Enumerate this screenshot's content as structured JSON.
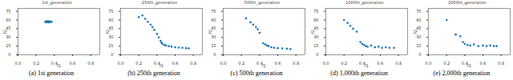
{
  "chart_data": [
    {
      "type": "scatter",
      "title": "1st_generation",
      "caption": "(a) 1st generation",
      "x_label": "f1",
      "y_label": "f2",
      "color": "#1f77b4",
      "marker": "circle",
      "x": [
        0.3,
        0.31,
        0.32,
        0.33,
        0.34,
        0.35,
        0.36,
        0.37,
        0.31,
        0.33,
        0.35,
        0.32
      ],
      "values": [
        57,
        58,
        56.5,
        57.5,
        56,
        57,
        56.5,
        57,
        56,
        58,
        57.5,
        57
      ],
      "xlim": [
        0,
        0.9
      ],
      "ylim": [
        0,
        80
      ],
      "xticks": [
        {
          "value": 0,
          "label": "0.0"
        },
        0.2,
        0.4,
        0.6,
        0.8
      ],
      "yticks": [
        0,
        15,
        30,
        45,
        60,
        75
      ]
    },
    {
      "type": "scatter",
      "title": "250th_generation",
      "caption": "(b) 250th generation",
      "x_label": "f1",
      "y_label": "f2",
      "color": "#1f77b4",
      "marker": "circle",
      "x": [
        0.2,
        0.24,
        0.27,
        0.3,
        0.33,
        0.35,
        0.37,
        0.4,
        0.42,
        0.44,
        0.45,
        0.46,
        0.48,
        0.5,
        0.53,
        0.56,
        0.6,
        0.64,
        0.68,
        0.72,
        0.75
      ],
      "values": [
        65,
        68,
        62,
        57,
        52,
        48,
        43,
        36,
        30,
        24,
        21,
        19,
        17,
        16,
        15,
        14,
        13,
        12.5,
        12,
        11.5,
        11
      ],
      "xlim": [
        0,
        0.9
      ],
      "ylim": [
        0,
        80
      ],
      "xticks": [
        {
          "value": 0,
          "label": "0.0"
        },
        0.2,
        0.4,
        0.6,
        0.8
      ],
      "yticks": [
        0,
        15,
        30,
        45,
        60,
        75
      ]
    },
    {
      "type": "scatter",
      "title": "500th_generation",
      "caption": "(c) 500th generation",
      "x_label": "f1",
      "y_label": "f2",
      "color": "#1f77b4",
      "marker": "circle",
      "x": [
        0.25,
        0.3,
        0.33,
        0.36,
        0.38,
        0.4,
        0.44,
        0.46,
        0.48,
        0.5,
        0.53,
        0.56,
        0.6,
        0.65,
        0.7,
        0.74
      ],
      "values": [
        63,
        56,
        52,
        48,
        44,
        38,
        20,
        18,
        16,
        15,
        13,
        12,
        11.5,
        11,
        10.5,
        10
      ],
      "xlim": [
        0,
        0.9
      ],
      "ylim": [
        0,
        80
      ],
      "xticks": [
        {
          "value": 0,
          "label": "0.0"
        },
        0.2,
        0.4,
        0.6,
        0.8
      ],
      "yticks": [
        0,
        15,
        30,
        45,
        60,
        75
      ]
    },
    {
      "type": "scatter",
      "title": "1000th_generation",
      "caption": "(d) 1,000th generation",
      "x_label": "f1",
      "y_label": "f2",
      "color": "#1f77b4",
      "marker": "circle",
      "x": [
        0.2,
        0.24,
        0.27,
        0.3,
        0.34,
        0.38,
        0.4,
        0.42,
        0.44,
        0.46,
        0.5,
        0.54,
        0.58,
        0.62,
        0.66,
        0.7,
        0.75
      ],
      "values": [
        60,
        55,
        50,
        45,
        40,
        22,
        19,
        17,
        15,
        14,
        16,
        13,
        14,
        12,
        13,
        12,
        12
      ],
      "xlim": [
        0,
        0.9
      ],
      "ylim": [
        0,
        80
      ],
      "xticks": [
        {
          "value": 0,
          "label": "0.0"
        },
        0.2,
        0.4,
        0.6,
        0.8
      ],
      "yticks": [
        0,
        15,
        30,
        45,
        60,
        75
      ]
    },
    {
      "type": "scatter",
      "title": "2000th_generation",
      "caption": "(e) 2,000th generation",
      "x_label": "f1",
      "y_label": "f2",
      "color": "#1f77b4",
      "marker": "circle",
      "x": [
        0.2,
        0.3,
        0.35,
        0.38,
        0.4,
        0.43,
        0.46,
        0.5,
        0.55,
        0.6,
        0.64,
        0.68,
        0.72,
        0.75
      ],
      "values": [
        60,
        35,
        32,
        22,
        19,
        17,
        16,
        18,
        15,
        16,
        15,
        16,
        15,
        15
      ],
      "xlim": [
        0,
        0.9
      ],
      "ylim": [
        0,
        80
      ],
      "xticks": [
        {
          "value": 0,
          "label": "0.0"
        },
        0.2,
        0.4,
        0.6,
        0.8
      ],
      "yticks": [
        0,
        15,
        30,
        45,
        60,
        75
      ]
    }
  ]
}
